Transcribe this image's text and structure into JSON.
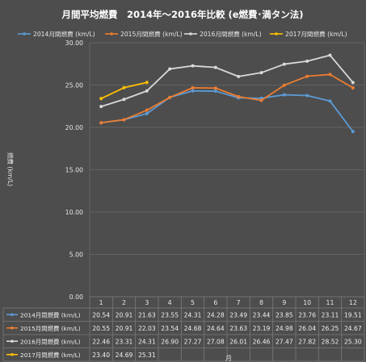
{
  "chart_data": {
    "type": "line",
    "title": "月間平均燃費　2014年～2016年比較 (e燃費･満タン法)",
    "xlabel": "月",
    "ylabel": "燃費 (km/L)",
    "categories": [
      "1",
      "2",
      "3",
      "4",
      "5",
      "6",
      "7",
      "8",
      "9",
      "10",
      "11",
      "12"
    ],
    "ylim": [
      0,
      30
    ],
    "y_ticks": [
      "0.00",
      "5.00",
      "10.00",
      "15.00",
      "20.00",
      "25.00",
      "30.00"
    ],
    "grid": true,
    "legend_position": "top",
    "data_table": true,
    "series": [
      {
        "name": "2014月間燃費 (km/L)",
        "color": "#5b9bd5",
        "values": [
          20.54,
          20.91,
          21.63,
          23.55,
          24.31,
          24.28,
          23.49,
          23.44,
          23.85,
          23.76,
          23.11,
          19.51
        ],
        "labels": [
          "20.54",
          "20.91",
          "21.63",
          "23.55",
          "24.31",
          "24.28",
          "23.49",
          "23.44",
          "23.85",
          "23.76",
          "23.11",
          "19.51"
        ]
      },
      {
        "name": "2015月間燃費 (km/L)",
        "color": "#ed7d31",
        "values": [
          20.55,
          20.91,
          22.03,
          23.54,
          24.68,
          24.64,
          23.63,
          23.19,
          24.98,
          26.04,
          26.25,
          24.67
        ],
        "labels": [
          "20.55",
          "20.91",
          "22.03",
          "23.54",
          "24.68",
          "24.64",
          "23.63",
          "23.19",
          "24.98",
          "26.04",
          "26.25",
          "24.67"
        ]
      },
      {
        "name": "2016月間燃費 (km/L)",
        "color": "#d9d9d9",
        "values": [
          22.46,
          23.31,
          24.31,
          26.9,
          27.27,
          27.08,
          26.01,
          26.46,
          27.47,
          27.82,
          28.52,
          25.3
        ],
        "labels": [
          "22.46",
          "23.31",
          "24.31",
          "26.90",
          "27.27",
          "27.08",
          "26.01",
          "26.46",
          "27.47",
          "27.82",
          "28.52",
          "25.30"
        ]
      },
      {
        "name": "2017月間燃費 (km/L)",
        "color": "#ffc000",
        "values": [
          23.4,
          24.69,
          25.31,
          null,
          null,
          null,
          null,
          null,
          null,
          null,
          null,
          null
        ],
        "labels": [
          "23.40",
          "24.69",
          "25.31",
          "",
          "",
          "",
          "",
          "",
          "",
          "",
          "",
          ""
        ]
      }
    ]
  }
}
